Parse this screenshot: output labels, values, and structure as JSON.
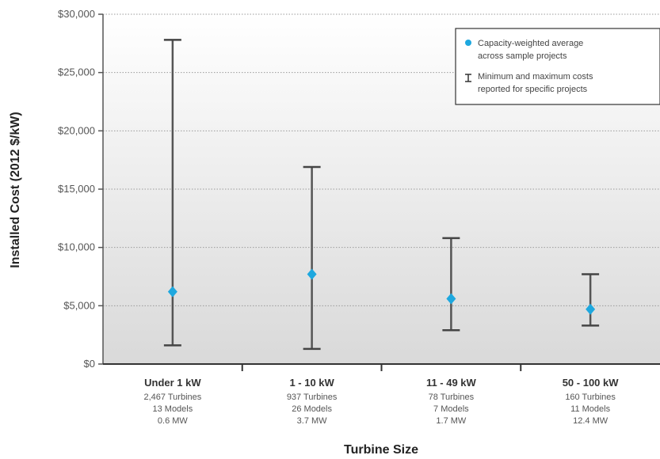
{
  "chart_data": {
    "type": "scatter",
    "title": "",
    "xlabel": "Turbine Size",
    "ylabel": "Installed Cost (2012 $/kW)",
    "ylim": [
      0,
      30000
    ],
    "yticks": [
      0,
      5000,
      10000,
      15000,
      20000,
      25000,
      30000
    ],
    "ytick_labels": [
      "$0",
      "$5,000",
      "$10,000",
      "$15,000",
      "$20,000",
      "$25,000",
      "$30,000"
    ],
    "grid": true,
    "legend_position": "top-right",
    "marker_color": "#1ea8df",
    "categories": [
      {
        "label": "Under 1 kW",
        "turbines": "2,467 Turbines",
        "models": "13 Models",
        "capacity": "0.6 MW",
        "average": 6200,
        "min": 1600,
        "max": 27800
      },
      {
        "label": "1 - 10 kW",
        "turbines": "937 Turbines",
        "models": "26 Models",
        "capacity": "3.7 MW",
        "average": 7700,
        "min": 1300,
        "max": 16900
      },
      {
        "label": "11 - 49 kW",
        "turbines": "78 Turbines",
        "models": "7 Models",
        "capacity": "1.7 MW",
        "average": 5600,
        "min": 2900,
        "max": 10800
      },
      {
        "label": "50 - 100 kW",
        "turbines": "160 Turbines",
        "models": "11 Models",
        "capacity": "12.4 MW",
        "average": 4700,
        "min": 3300,
        "max": 7700
      }
    ],
    "legend": [
      {
        "kind": "marker",
        "line1": "Capacity-weighted average",
        "line2": "across sample projects"
      },
      {
        "kind": "errorbar",
        "line1": "Minimum and maximum costs",
        "line2": "reported for specific projects"
      }
    ]
  }
}
